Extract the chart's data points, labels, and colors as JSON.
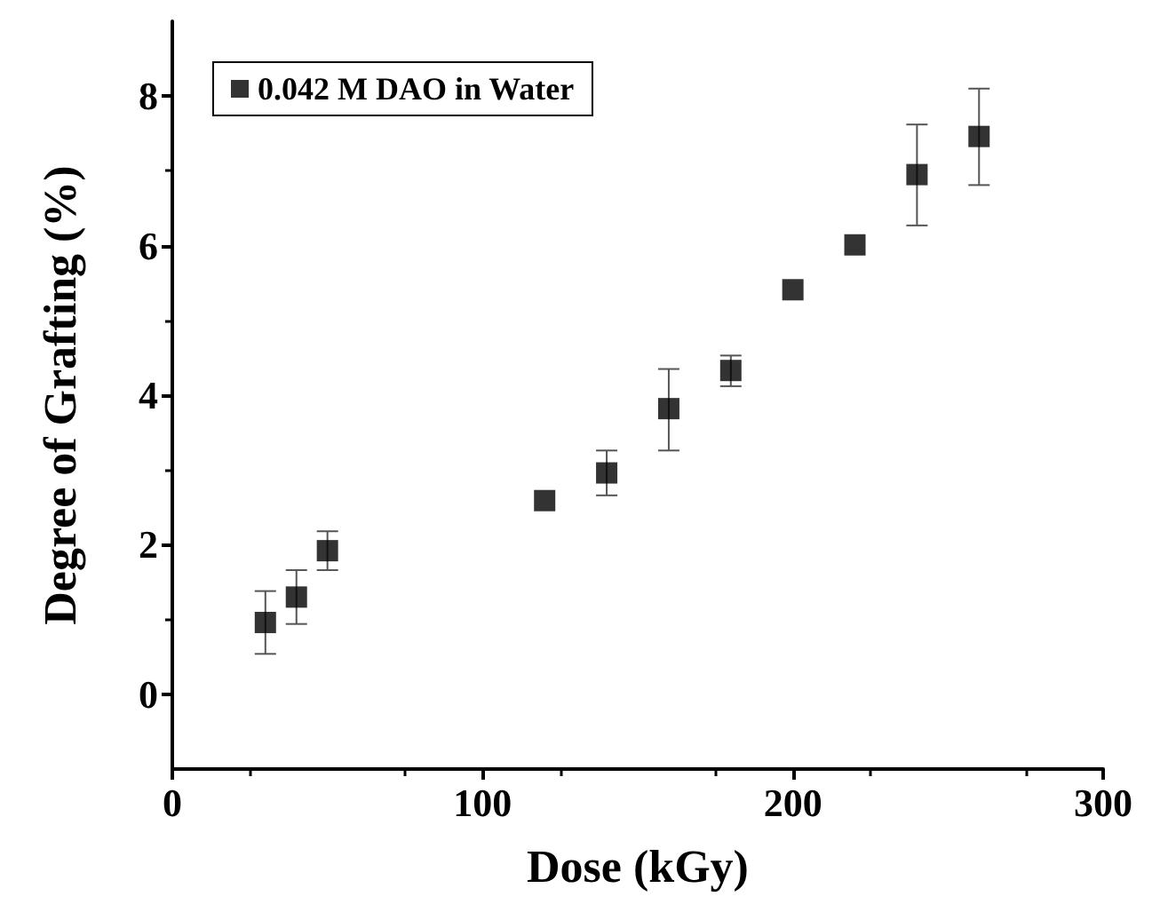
{
  "chart_data": {
    "type": "scatter",
    "xlabel": "Dose (kGy)",
    "ylabel": "Degree of Grafting (%)",
    "x": [
      30,
      40,
      50,
      120,
      140,
      160,
      180,
      200,
      220,
      240,
      260
    ],
    "series": [
      {
        "name": "0.042 M DAO in Water",
        "color": "#000000",
        "values": [
          0.96,
          1.3,
          1.92,
          2.59,
          2.96,
          3.82,
          4.33,
          5.41,
          6.01,
          6.95,
          7.46
        ],
        "errors": [
          [
            0.54,
            1.38
          ],
          [
            0.94,
            1.66
          ],
          [
            1.66,
            2.18
          ],
          null,
          [
            2.66,
            3.26
          ],
          [
            3.26,
            4.35
          ],
          [
            4.12,
            4.53
          ],
          null,
          null,
          [
            6.27,
            7.62
          ],
          [
            6.81,
            8.1
          ]
        ]
      }
    ],
    "xlim": [
      0,
      300
    ],
    "xticks": [
      0,
      100,
      200,
      300
    ],
    "ylim": [
      -1,
      9
    ],
    "yticks": [
      0,
      2,
      4,
      6,
      8
    ],
    "marker": "square",
    "grid": false,
    "legend": "top left"
  }
}
